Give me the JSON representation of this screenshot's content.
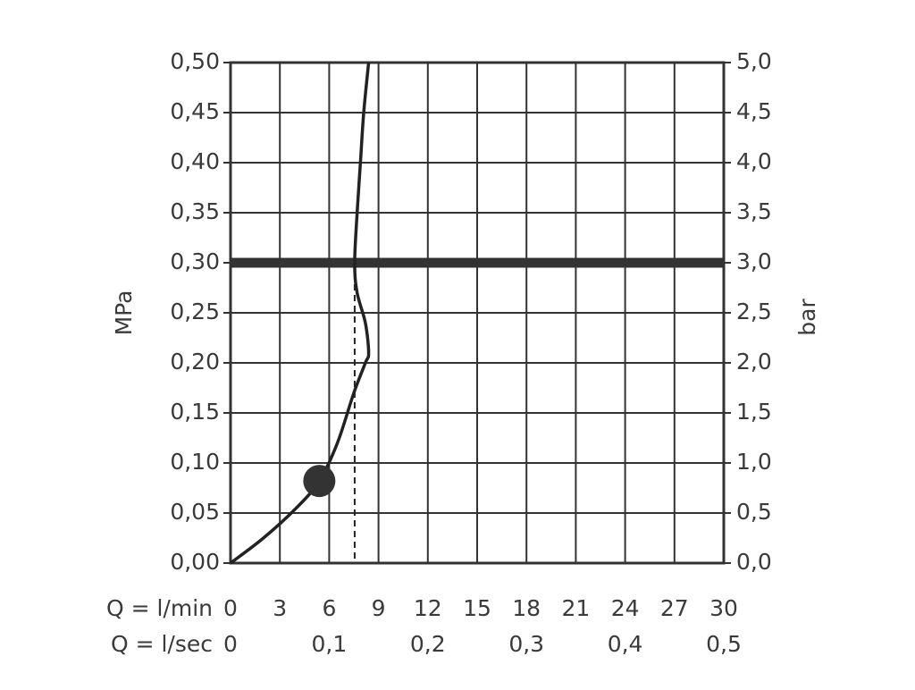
{
  "chart_data": {
    "type": "line",
    "y_label": "MPa",
    "y2_label": "bar",
    "x_label": "Q = l/min",
    "x2_label": "Q = l/sec",
    "xlim": [
      0,
      30
    ],
    "xticks": [
      0,
      3,
      6,
      9,
      12,
      15,
      18,
      21,
      24,
      27,
      30
    ],
    "x2lim": [
      0,
      0.5
    ],
    "x2ticks": [
      {
        "value": 0,
        "label": "0"
      },
      {
        "value": 0.1,
        "label": "0,1"
      },
      {
        "value": 0.2,
        "label": "0,2"
      },
      {
        "value": 0.3,
        "label": "0,3"
      },
      {
        "value": 0.4,
        "label": "0,4"
      },
      {
        "value": 0.5,
        "label": "0,5"
      }
    ],
    "ylim": [
      0,
      0.5
    ],
    "yticks": [
      {
        "value": 0,
        "label": "0,00"
      },
      {
        "value": 0.05,
        "label": "0,05"
      },
      {
        "value": 0.1,
        "label": "0,10"
      },
      {
        "value": 0.15,
        "label": "0,15"
      },
      {
        "value": 0.2,
        "label": "0,20"
      },
      {
        "value": 0.25,
        "label": "0,25"
      },
      {
        "value": 0.3,
        "label": "0,30"
      },
      {
        "value": 0.35,
        "label": "0,35"
      },
      {
        "value": 0.4,
        "label": "0,40"
      },
      {
        "value": 0.45,
        "label": "0,45"
      },
      {
        "value": 0.5,
        "label": "0,50"
      }
    ],
    "y2lim": [
      0,
      5
    ],
    "y2ticks": [
      {
        "value": 0,
        "label": "0,0"
      },
      {
        "value": 0.5,
        "label": "0,5"
      },
      {
        "value": 1,
        "label": "1,0"
      },
      {
        "value": 1.5,
        "label": "1,5"
      },
      {
        "value": 2,
        "label": "2,0"
      },
      {
        "value": 2.5,
        "label": "2,5"
      },
      {
        "value": 3,
        "label": "3,0"
      },
      {
        "value": 3.5,
        "label": "3,5"
      },
      {
        "value": 4,
        "label": "4,0"
      },
      {
        "value": 4.5,
        "label": "4,5"
      },
      {
        "value": 5,
        "label": "5,0"
      }
    ],
    "grid": true,
    "series": [
      {
        "color": "#222222",
        "x": [
          0,
          2,
          4,
          5.4,
          6.5,
          7.5,
          8.2,
          8.4,
          8.2,
          7.7,
          7.55,
          7.7,
          7.9,
          8.1,
          8.4
        ],
        "values": [
          0,
          0.025,
          0.055,
          0.082,
          0.12,
          0.17,
          0.2,
          0.21,
          0.24,
          0.27,
          0.3,
          0.35,
          0.4,
          0.45,
          0.5
        ]
      }
    ],
    "reference_y": 0.3,
    "reference_x": 7.55,
    "marker": {
      "x": 5.4,
      "y": 0.082
    }
  }
}
